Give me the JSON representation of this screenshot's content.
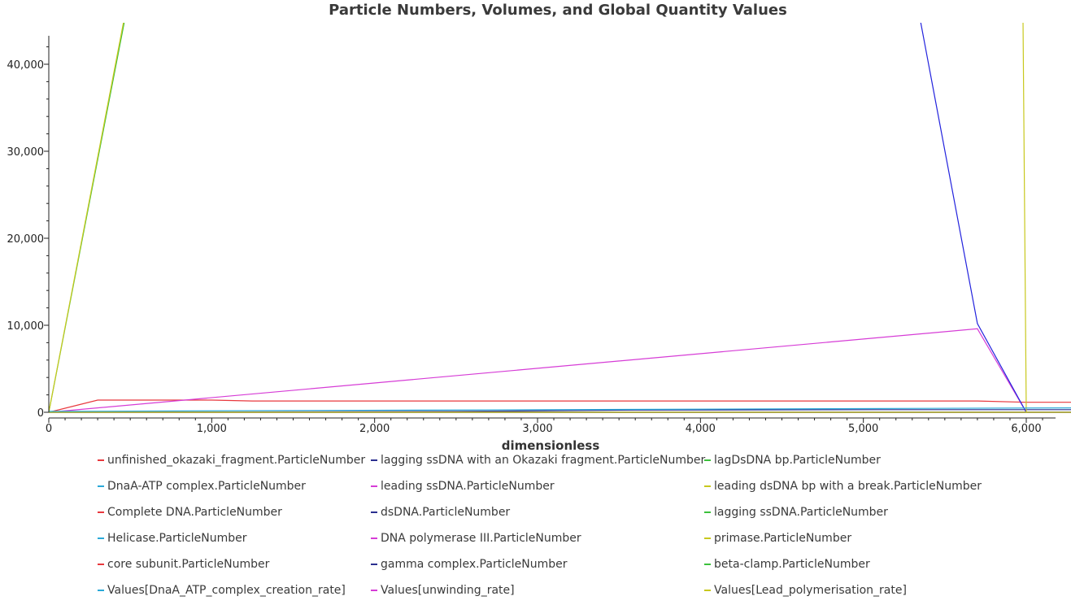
{
  "chart_data": {
    "type": "line",
    "title": "Particle Numbers, Volumes, and Global Quantity Values",
    "xlabel": "dimensionless",
    "ylabel": "",
    "xlim": [
      0,
      6200
    ],
    "ylim": [
      0,
      43500
    ],
    "x_ticks": [
      0,
      1000,
      2000,
      3000,
      4000,
      5000,
      6000
    ],
    "x_tick_labels": [
      "0",
      "1,000",
      "2,000",
      "3,000",
      "4,000",
      "5,000",
      "6,000"
    ],
    "y_ticks": [
      0,
      10000,
      20000,
      30000,
      40000
    ],
    "y_tick_labels": [
      "0",
      "10,000",
      "20,000",
      "30,000",
      "40,000"
    ],
    "grid": false,
    "legend_position": "bottom",
    "series": [
      {
        "name": "unfinished_okazaki_fragment.ParticleNumber",
        "color": "#e8383d",
        "x": [
          0,
          300,
          1000,
          1250,
          2500,
          5000,
          5700,
          6000,
          6300
        ],
        "y": [
          0,
          1400,
          1400,
          1300,
          1300,
          1300,
          1300,
          1150,
          1150
        ]
      },
      {
        "name": "lagging ssDNA with an Okazaki fragment.ParticleNumber",
        "color": "#2b2f8f",
        "x": [
          0,
          2500,
          3600,
          5100,
          6300
        ],
        "y": [
          0,
          100,
          250,
          300,
          300
        ]
      },
      {
        "name": "lagDsDNA bp.ParticleNumber",
        "color": "#3cc13c",
        "x": [
          0,
          465
        ],
        "y": [
          0,
          45000
        ]
      },
      {
        "name": "DnaA-ATP complex.ParticleNumber",
        "color": "#2aa9d8",
        "x": [
          0,
          6300
        ],
        "y": [
          0,
          0
        ]
      },
      {
        "name": "leading ssDNA.ParticleNumber",
        "color": "#d63cd6",
        "x": [
          0,
          5700,
          6000
        ],
        "y": [
          0,
          9600,
          0
        ]
      },
      {
        "name": "leading dsDNA bp with a break.ParticleNumber",
        "color": "#c8c81e",
        "x": [
          0,
          6000
        ],
        "y": [
          0,
          0
        ]
      },
      {
        "name": "Complete DNA.ParticleNumber",
        "color": "#e8383d",
        "x": [
          0,
          6300
        ],
        "y": [
          0,
          0
        ]
      },
      {
        "name": "dsDNA.ParticleNumber",
        "color": "#2b2f8f",
        "x": [
          0,
          6300
        ],
        "y": [
          0,
          0
        ]
      },
      {
        "name": "lagging ssDNA.ParticleNumber",
        "color": "#3cc13c",
        "x": [
          0,
          6300
        ],
        "y": [
          0,
          0
        ]
      },
      {
        "name": "Helicase.ParticleNumber",
        "color": "#2aa9d8",
        "x": [
          0,
          6300
        ],
        "y": [
          0,
          0
        ]
      },
      {
        "name": "DNA polymerase III.ParticleNumber",
        "color": "#d63cd6",
        "x": [
          0,
          6300
        ],
        "y": [
          0,
          0
        ]
      },
      {
        "name": "primase.ParticleNumber",
        "color": "#c8c81e",
        "x": [
          0,
          6300
        ],
        "y": [
          0,
          0
        ]
      },
      {
        "name": "core subunit.ParticleNumber",
        "color": "#e8383d",
        "x": [
          0,
          6300
        ],
        "y": [
          0,
          0
        ]
      },
      {
        "name": "gamma complex.ParticleNumber",
        "color": "#2b2f8f",
        "x": [
          0,
          6300
        ],
        "y": [
          0,
          0
        ]
      },
      {
        "name": "beta-clamp.ParticleNumber",
        "color": "#3cc13c",
        "x": [
          0,
          6300
        ],
        "y": [
          0,
          0
        ]
      },
      {
        "name": "Values[DnaA_ATP_complex_creation_rate]",
        "color": "#2aa9d8",
        "x": [
          0,
          6300
        ],
        "y": [
          0,
          0
        ]
      },
      {
        "name": "Values[unwinding_rate]",
        "color": "#d63cd6",
        "x": [
          0,
          6300
        ],
        "y": [
          0,
          0
        ]
      },
      {
        "name": "Values[Lead_polymerisation_rate]",
        "color": "#c8c81e",
        "x": [
          0,
          6300
        ],
        "y": [
          0,
          0
        ]
      }
    ],
    "extra_lines": [
      {
        "series": "dsDNA.ParticleNumber",
        "color": "#2222dd",
        "x": [
          5350,
          5700,
          6000
        ],
        "y": [
          45000,
          10200,
          0
        ]
      },
      {
        "series": "leading dsDNA bp with a break.ParticleNumber",
        "color": "#c8c81e",
        "x": [
          0,
          460
        ],
        "y": [
          0,
          45000
        ]
      },
      {
        "series": "primase.ParticleNumber",
        "color": "#c8c81e",
        "x": [
          5980,
          6000,
          6010
        ],
        "y": [
          45000,
          0,
          0
        ]
      },
      {
        "series": "DnaA-ATP complex.ParticleNumber",
        "color": "#2aa9d8",
        "x": [
          0,
          6300
        ],
        "y": [
          100,
          500
        ]
      }
    ]
  }
}
